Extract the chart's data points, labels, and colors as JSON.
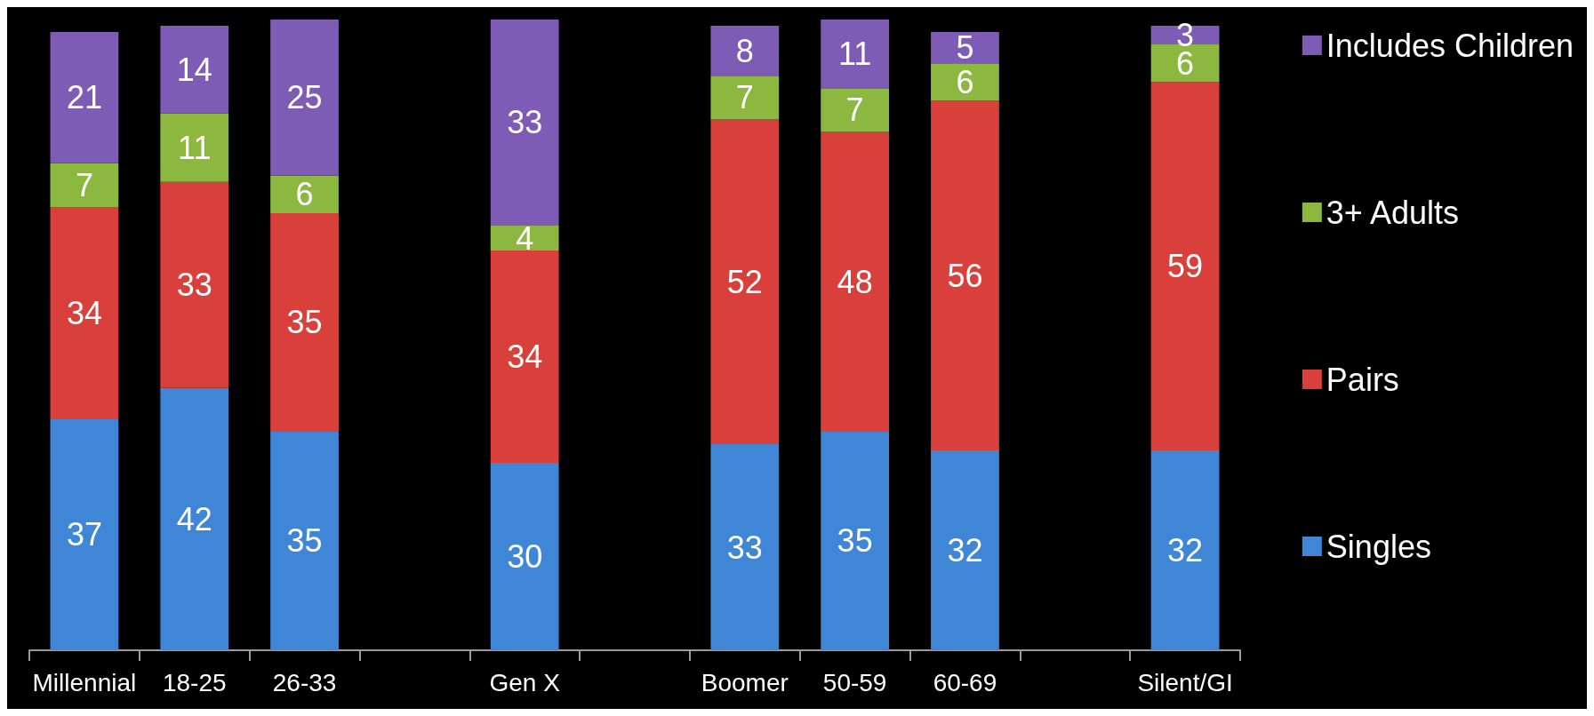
{
  "chart_data": {
    "type": "bar",
    "stacked": true,
    "data_labels": true,
    "legend": "right",
    "categories": [
      "Millennial",
      "18-25",
      "26-33",
      null,
      "Gen X",
      null,
      "Boomer",
      "50-59",
      "60-69",
      null,
      "Silent/GI"
    ],
    "series": [
      {
        "name": "Singles",
        "color": "#3f86d6",
        "values": [
          37,
          42,
          35,
          null,
          30,
          null,
          33,
          35,
          32,
          null,
          32
        ]
      },
      {
        "name": "Pairs",
        "color": "#d9403c",
        "values": [
          34,
          33,
          35,
          null,
          34,
          null,
          52,
          48,
          56,
          null,
          59
        ]
      },
      {
        "name": "3+ Adults",
        "color": "#8cb840",
        "values": [
          7,
          11,
          6,
          null,
          4,
          null,
          7,
          7,
          6,
          null,
          6
        ]
      },
      {
        "name": "Includes Children",
        "color": "#7e5bb4",
        "values": [
          21,
          14,
          25,
          null,
          33,
          null,
          8,
          11,
          5,
          null,
          3
        ]
      }
    ]
  }
}
